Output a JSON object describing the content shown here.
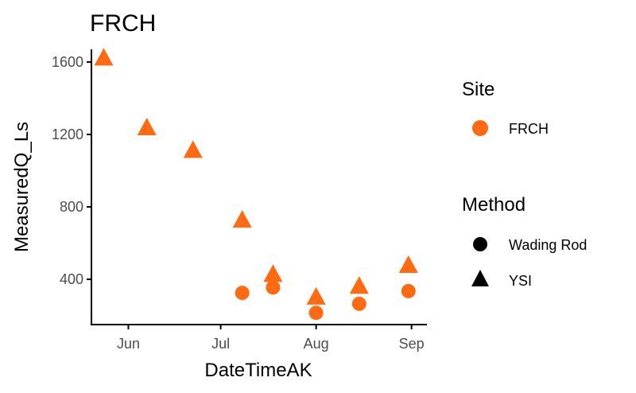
{
  "chart_data": {
    "type": "scatter",
    "title": "FRCH",
    "xlabel": "DateTimeAK",
    "ylabel": "MeasuredQ_Ls",
    "x_tick_labels": [
      "Jun",
      "Jul",
      "Aug",
      "Sep"
    ],
    "x_ticks": [
      "2021-06-01",
      "2021-07-01",
      "2021-08-01",
      "2021-09-01"
    ],
    "xlim": [
      "2021-05-20",
      "2021-09-06"
    ],
    "y_ticks": [
      400,
      800,
      1200,
      1600
    ],
    "y_tick_labels": [
      "400",
      "800",
      "1200",
      "1600"
    ],
    "ylim": [
      150,
      1670
    ],
    "grid": false,
    "legend_position": "right",
    "color": "#FF6A13",
    "legends": [
      {
        "title": "Site",
        "entries": [
          {
            "label": "FRCH",
            "shape": "circle",
            "color": "#FF6A13"
          }
        ]
      },
      {
        "title": "Method",
        "entries": [
          {
            "label": "Wading Rod",
            "shape": "circle",
            "color": "#000000"
          },
          {
            "label": "YSI",
            "shape": "triangle",
            "color": "#000000"
          }
        ]
      }
    ],
    "series": [
      {
        "name": "Wading Rod",
        "shape": "circle",
        "points": [
          {
            "x": "2021-07-08",
            "y": 325
          },
          {
            "x": "2021-07-18",
            "y": 355
          },
          {
            "x": "2021-08-01",
            "y": 215
          },
          {
            "x": "2021-08-15",
            "y": 265
          },
          {
            "x": "2021-08-31",
            "y": 335
          }
        ]
      },
      {
        "name": "YSI",
        "shape": "triangle",
        "points": [
          {
            "x": "2021-05-24",
            "y": 1620
          },
          {
            "x": "2021-06-07",
            "y": 1235
          },
          {
            "x": "2021-06-22",
            "y": 1110
          },
          {
            "x": "2021-07-08",
            "y": 725
          },
          {
            "x": "2021-07-18",
            "y": 425
          },
          {
            "x": "2021-08-01",
            "y": 300
          },
          {
            "x": "2021-08-15",
            "y": 360
          },
          {
            "x": "2021-08-31",
            "y": 475
          }
        ]
      }
    ]
  }
}
